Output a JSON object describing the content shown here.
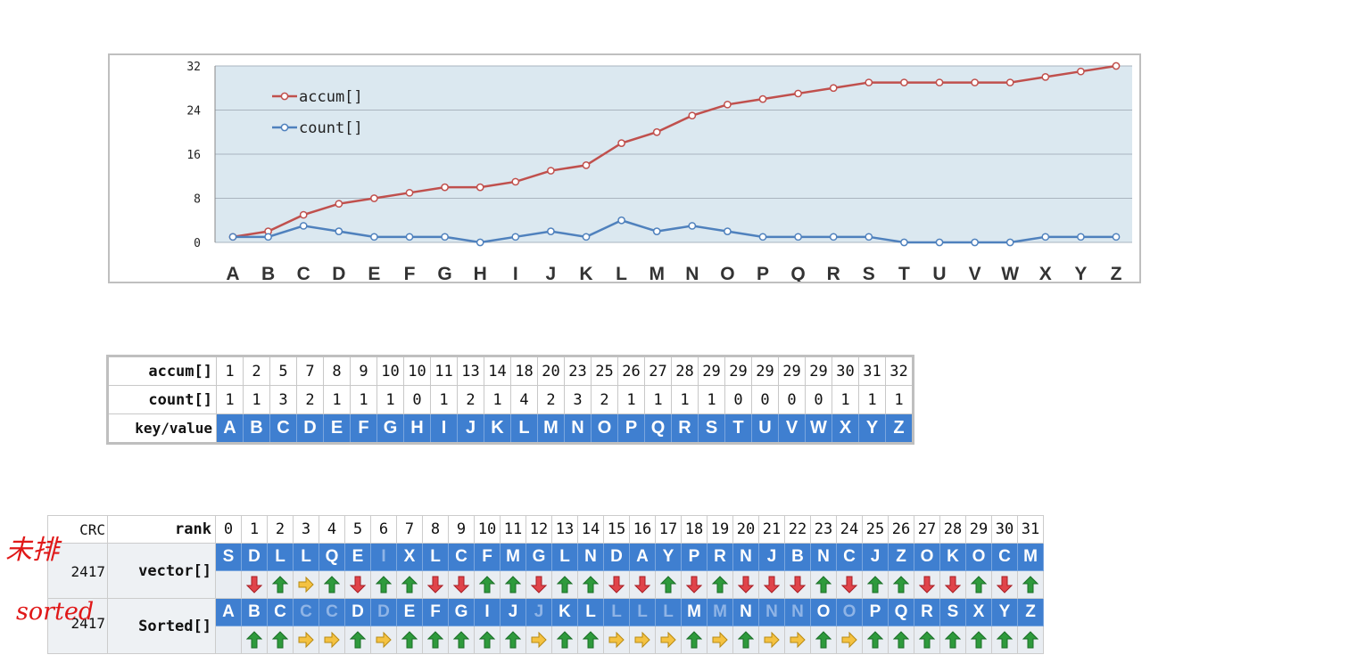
{
  "chart_data": {
    "type": "line",
    "x": [
      "A",
      "B",
      "C",
      "D",
      "E",
      "F",
      "G",
      "H",
      "I",
      "J",
      "K",
      "L",
      "M",
      "N",
      "O",
      "P",
      "Q",
      "R",
      "S",
      "T",
      "U",
      "V",
      "W",
      "X",
      "Y",
      "Z"
    ],
    "series": [
      {
        "name": "accum[]",
        "color": "#c0504d",
        "values": [
          1,
          2,
          5,
          7,
          8,
          9,
          10,
          10,
          11,
          13,
          14,
          18,
          20,
          23,
          25,
          26,
          27,
          28,
          29,
          29,
          29,
          29,
          29,
          30,
          31,
          32
        ]
      },
      {
        "name": "count[]",
        "color": "#4f81bd",
        "values": [
          1,
          1,
          3,
          2,
          1,
          1,
          1,
          0,
          1,
          2,
          1,
          4,
          2,
          3,
          2,
          1,
          1,
          1,
          1,
          0,
          0,
          0,
          0,
          1,
          1,
          1
        ]
      }
    ],
    "yticks": [
      0,
      8,
      16,
      24,
      32
    ],
    "ylim": [
      0,
      32
    ],
    "grid": true,
    "legend_position": "top-left",
    "plot_background": "#dbe8f0"
  },
  "accum_table": {
    "row_labels": [
      "accum[]",
      "count[]",
      "key/value"
    ],
    "accum": [
      "1",
      "2",
      "5",
      "7",
      "8",
      "9",
      "10",
      "10",
      "11",
      "13",
      "14",
      "18",
      "20",
      "23",
      "25",
      "26",
      "27",
      "28",
      "29",
      "29",
      "29",
      "29",
      "29",
      "30",
      "31",
      "32"
    ],
    "count": [
      "1",
      "1",
      "3",
      "2",
      "1",
      "1",
      "1",
      "0",
      "1",
      "2",
      "1",
      "4",
      "2",
      "3",
      "2",
      "1",
      "1",
      "1",
      "1",
      "0",
      "0",
      "0",
      "0",
      "1",
      "1",
      "1"
    ],
    "keys": [
      "A",
      "B",
      "C",
      "D",
      "E",
      "F",
      "G",
      "H",
      "I",
      "J",
      "K",
      "L",
      "M",
      "N",
      "O",
      "P",
      "Q",
      "R",
      "S",
      "T",
      "U",
      "V",
      "W",
      "X",
      "Y",
      "Z"
    ]
  },
  "sort_table": {
    "crc_label": "CRC",
    "rank_label": "rank",
    "ranks": [
      "0",
      "1",
      "2",
      "3",
      "4",
      "5",
      "6",
      "7",
      "8",
      "9",
      "10",
      "11",
      "12",
      "13",
      "14",
      "15",
      "16",
      "17",
      "18",
      "19",
      "20",
      "21",
      "22",
      "23",
      "24",
      "25",
      "26",
      "27",
      "28",
      "29",
      "30",
      "31"
    ],
    "vector_crc": "2417",
    "vector_label": "vector[]",
    "vector": [
      "S",
      "D",
      "L",
      "L",
      "Q",
      "E",
      "I",
      "X",
      "L",
      "C",
      "F",
      "M",
      "G",
      "L",
      "N",
      "D",
      "A",
      "Y",
      "P",
      "R",
      "N",
      "J",
      "B",
      "N",
      "C",
      "J",
      "Z",
      "O",
      "K",
      "O",
      "C",
      "M"
    ],
    "vector_faded": [
      6
    ],
    "vector_arrows": [
      "",
      "down",
      "up",
      "right",
      "up",
      "down",
      "up",
      "up",
      "down",
      "down",
      "up",
      "up",
      "down",
      "up",
      "up",
      "down",
      "down",
      "up",
      "down",
      "up",
      "down",
      "down",
      "down",
      "up",
      "down",
      "up",
      "up",
      "down",
      "down",
      "up",
      "down",
      "up"
    ],
    "sorted_crc": "2417",
    "sorted_label": "Sorted[]",
    "sorted": [
      "A",
      "B",
      "C",
      "C",
      "C",
      "D",
      "D",
      "E",
      "F",
      "G",
      "I",
      "J",
      "J",
      "K",
      "L",
      "L",
      "L",
      "L",
      "M",
      "M",
      "N",
      "N",
      "N",
      "O",
      "O",
      "P",
      "Q",
      "R",
      "S",
      "X",
      "Y",
      "Z"
    ],
    "sorted_faded": [
      3,
      4,
      6,
      12,
      15,
      16,
      17,
      19,
      21,
      22,
      24
    ],
    "sorted_arrows": [
      "",
      "up",
      "up",
      "right",
      "right",
      "up",
      "right",
      "up",
      "up",
      "up",
      "up",
      "up",
      "right",
      "up",
      "up",
      "right",
      "right",
      "right",
      "up",
      "right",
      "up",
      "right",
      "right",
      "up",
      "right",
      "up",
      "up",
      "up",
      "up",
      "up",
      "up",
      "up"
    ]
  },
  "annotations": {
    "unsorted": "未排",
    "sorted": "sorted"
  }
}
